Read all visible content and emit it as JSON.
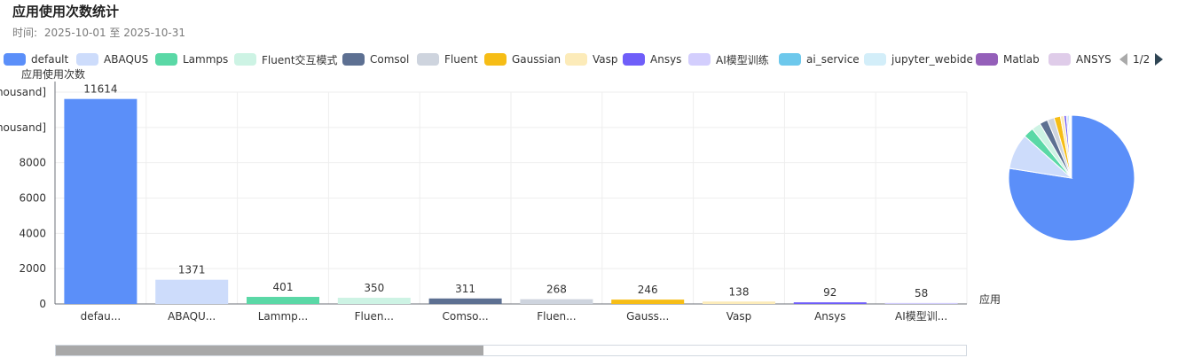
{
  "header": {
    "title": "应用使用次数统计",
    "time_label": "时间:",
    "time_range": "2025-10-01 至 2025-10-31"
  },
  "legend": {
    "items": [
      {
        "label": "default",
        "color": "#5b8ff9"
      },
      {
        "label": "ABAQUS",
        "color": "#cddcfb"
      },
      {
        "label": "Lammps",
        "color": "#5ad8a6"
      },
      {
        "label": "Fluent交互模式",
        "color": "#cdf3e4"
      },
      {
        "label": "Comsol",
        "color": "#5d7092"
      },
      {
        "label": "Fluent",
        "color": "#ced4de"
      },
      {
        "label": "Gaussian",
        "color": "#f6bd16"
      },
      {
        "label": "Vasp",
        "color": "#fcebb9"
      },
      {
        "label": "Ansys",
        "color": "#6f5ef9"
      },
      {
        "label": "AI模型训练",
        "color": "#d3cefd"
      },
      {
        "label": "ai_service",
        "color": "#6dc8ec"
      },
      {
        "label": "jupyter_webide",
        "color": "#d3eef9"
      },
      {
        "label": "Matlab",
        "color": "#945fb9"
      },
      {
        "label": "ANSYS",
        "color": "#dfcce9"
      }
    ],
    "page": "1/2"
  },
  "chart_data": {
    "type": "bar",
    "ylabel": "应用使用次数",
    "xlabel": "应用",
    "truncated_y_labels": [
      "housand]",
      "housand]"
    ],
    "y_ticks": [
      0,
      2000,
      4000,
      6000,
      8000
    ],
    "ylim": [
      0,
      12000
    ],
    "categories": [
      "defau...",
      "ABAQU...",
      "Lammp...",
      "Fluen...",
      "Comso...",
      "Fluen...",
      "Gauss...",
      "Vasp",
      "Ansys",
      "AI模型训..."
    ],
    "values": [
      11614,
      1371,
      401,
      350,
      311,
      268,
      246,
      138,
      92,
      58
    ],
    "colors": [
      "#5b8ff9",
      "#cddcfb",
      "#5ad8a6",
      "#cdf3e4",
      "#5d7092",
      "#ced4de",
      "#f6bd16",
      "#fcebb9",
      "#6f5ef9",
      "#d3cefd"
    ],
    "grid": true,
    "pie": {
      "values": [
        11614,
        1371,
        401,
        350,
        311,
        268,
        246,
        138,
        92,
        58,
        50,
        40,
        30,
        20
      ],
      "colors": [
        "#5b8ff9",
        "#cddcfb",
        "#5ad8a6",
        "#cdf3e4",
        "#5d7092",
        "#ced4de",
        "#f6bd16",
        "#fcebb9",
        "#6f5ef9",
        "#d3cefd",
        "#6dc8ec",
        "#d3eef9",
        "#945fb9",
        "#dfcce9"
      ]
    },
    "zoom_range": [
      0,
      0.47
    ]
  }
}
